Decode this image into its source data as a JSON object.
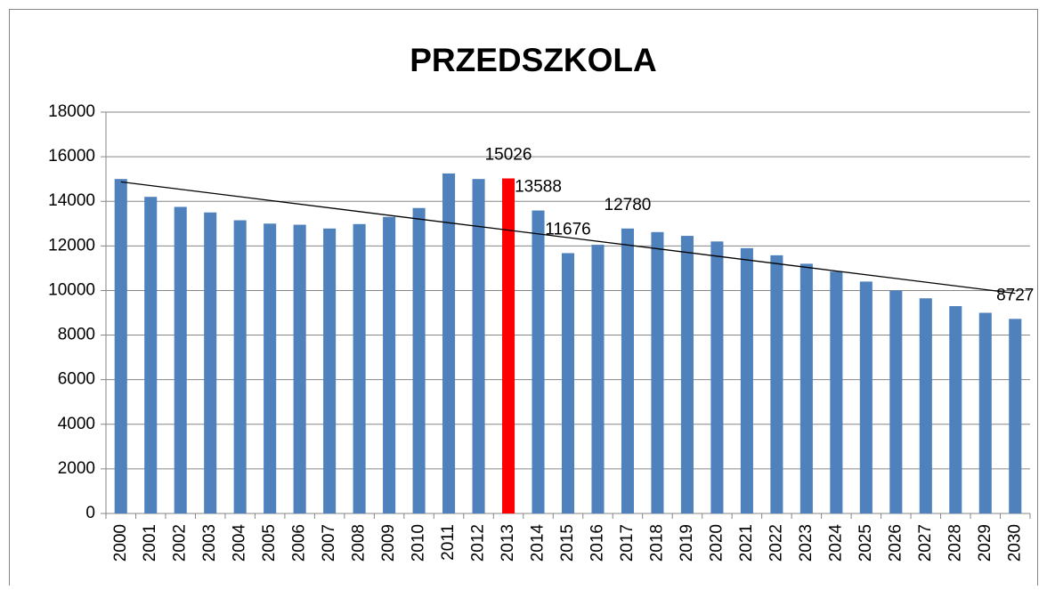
{
  "chart_data": {
    "type": "bar",
    "title": "PRZEDSZKOLA",
    "categories": [
      "2000",
      "2001",
      "2002",
      "2003",
      "2004",
      "2005",
      "2006",
      "2007",
      "2008",
      "2009",
      "2010",
      "2011",
      "2012",
      "2013",
      "2014",
      "2015",
      "2016",
      "2017",
      "2018",
      "2019",
      "2020",
      "2021",
      "2022",
      "2023",
      "2024",
      "2025",
      "2026",
      "2027",
      "2028",
      "2029",
      "2030"
    ],
    "values": [
      15000,
      14200,
      13750,
      13500,
      13150,
      13000,
      12950,
      12780,
      12980,
      13300,
      13700,
      15250,
      15000,
      15026,
      13588,
      11676,
      12050,
      12780,
      12620,
      12450,
      12200,
      11900,
      11580,
      11200,
      10850,
      10400,
      10000,
      9650,
      9300,
      9000,
      8727
    ],
    "value_labels": [
      null,
      null,
      null,
      null,
      null,
      null,
      null,
      null,
      null,
      null,
      null,
      null,
      null,
      "15026",
      "13588",
      "11676",
      null,
      "12780",
      null,
      null,
      null,
      null,
      null,
      null,
      null,
      null,
      null,
      null,
      null,
      null,
      "8727"
    ],
    "colors": [
      "#4f81bd",
      "#4f81bd",
      "#4f81bd",
      "#4f81bd",
      "#4f81bd",
      "#4f81bd",
      "#4f81bd",
      "#4f81bd",
      "#4f81bd",
      "#4f81bd",
      "#4f81bd",
      "#4f81bd",
      "#4f81bd",
      "#ff0000",
      "#4f81bd",
      "#4f81bd",
      "#4f81bd",
      "#4f81bd",
      "#4f81bd",
      "#4f81bd",
      "#4f81bd",
      "#4f81bd",
      "#4f81bd",
      "#4f81bd",
      "#4f81bd",
      "#4f81bd",
      "#4f81bd",
      "#4f81bd",
      "#4f81bd",
      "#4f81bd",
      "#4f81bd"
    ],
    "ylim": [
      0,
      18000
    ],
    "yticks": [
      0,
      2000,
      4000,
      6000,
      8000,
      10000,
      12000,
      14000,
      16000,
      18000
    ],
    "grid": true,
    "trendline": "linear"
  }
}
